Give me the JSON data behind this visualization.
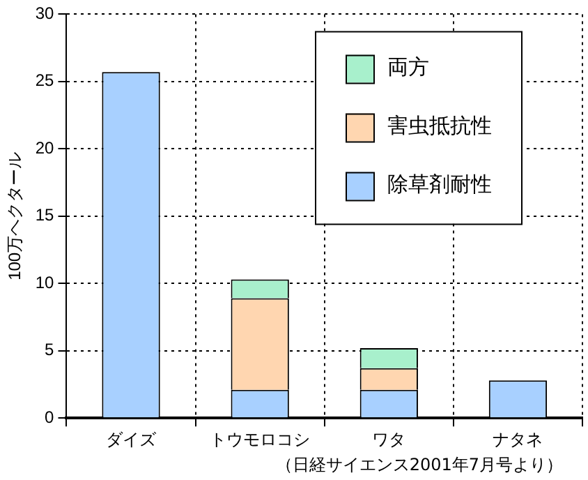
{
  "chart_data": {
    "type": "bar",
    "stacked": true,
    "ylabel": "100万ヘクタール",
    "categories": [
      "ダイズ",
      "トウモロコシ",
      "ワタ",
      "ナタネ"
    ],
    "series": [
      {
        "name": "除草剤耐性",
        "color": "#a8d0ff",
        "values": [
          25.7,
          2.1,
          2.1,
          2.8
        ]
      },
      {
        "name": "害虫抵抗性",
        "color": "#ffd6b0",
        "values": [
          null,
          6.8,
          1.6,
          null
        ]
      },
      {
        "name": "両方",
        "color": "#a8f0cc",
        "values": [
          null,
          1.4,
          1.5,
          null
        ]
      }
    ],
    "ylim": [
      0,
      30
    ],
    "yticks": [
      0,
      5,
      10,
      15,
      20,
      25,
      30
    ],
    "grid": true,
    "legend": "top right",
    "annotations": [
      "（日経サイエンス2001年7月号より）"
    ]
  }
}
